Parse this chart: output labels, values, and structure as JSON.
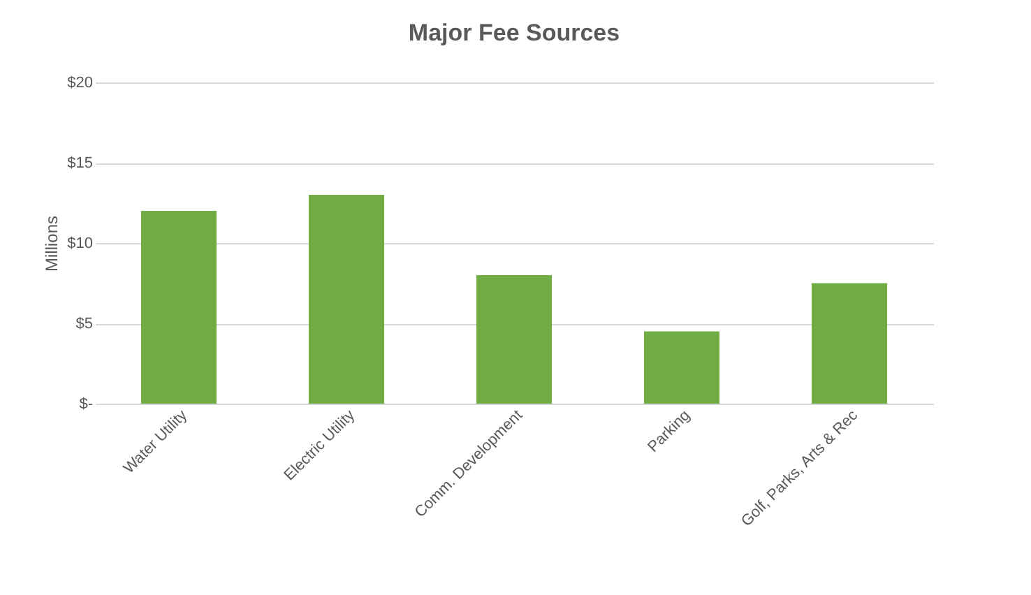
{
  "chart_data": {
    "type": "bar",
    "title": "Major Fee Sources",
    "ylabel": "Millions",
    "categories": [
      "Water Utility",
      "Electric Utility",
      "Comm. Development",
      "Parking",
      "Golf, Parks, Arts & Rec"
    ],
    "values": [
      12,
      13,
      8,
      4.5,
      7.5
    ],
    "color": "#70ad47",
    "ylim": [
      0,
      20
    ],
    "yticks": [
      {
        "value": 0,
        "label": "$-"
      },
      {
        "value": 5,
        "label": "$5"
      },
      {
        "value": 10,
        "label": "$10"
      },
      {
        "value": 15,
        "label": "$15"
      },
      {
        "value": 20,
        "label": "$20"
      }
    ],
    "grid": "y"
  }
}
